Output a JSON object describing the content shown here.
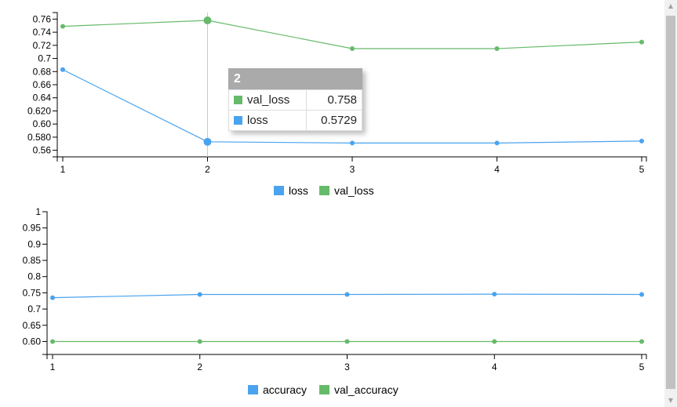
{
  "colors": {
    "loss": "#4aa3ee",
    "val_loss": "#66bb6a",
    "tooltip_header": "#aaaaaa",
    "focus_line": "#c8c8c8"
  },
  "chart_data": [
    {
      "type": "line",
      "x": [
        1,
        2,
        3,
        4,
        5
      ],
      "series": [
        {
          "name": "loss",
          "values": [
            0.683,
            0.5729,
            0.571,
            0.571,
            0.574
          ]
        },
        {
          "name": "val_loss",
          "values": [
            0.749,
            0.758,
            0.715,
            0.715,
            0.725
          ]
        }
      ],
      "ylim": [
        0.55,
        0.77
      ],
      "xlim": [
        1,
        5
      ],
      "y_ticks": [
        {
          "v": 0.56,
          "label": "0.56"
        },
        {
          "v": 0.58,
          "label": "0.580"
        },
        {
          "v": 0.6,
          "label": "0.60"
        },
        {
          "v": 0.62,
          "label": "0.620"
        },
        {
          "v": 0.64,
          "label": "0.64"
        },
        {
          "v": 0.66,
          "label": "0.66"
        },
        {
          "v": 0.68,
          "label": "0.68"
        },
        {
          "v": 0.7,
          "label": "0.7"
        },
        {
          "v": 0.72,
          "label": "0.72"
        },
        {
          "v": 0.74,
          "label": "0.74"
        },
        {
          "v": 0.76,
          "label": "0.76"
        }
      ],
      "x_ticks": [
        "1",
        "2",
        "3",
        "4",
        "5"
      ],
      "legend": [
        "loss",
        "val_loss"
      ],
      "legend_position": "bottom-center",
      "focus_x": 2,
      "tooltip": {
        "title": "2",
        "rows": [
          {
            "name": "val_loss",
            "value": "0.758",
            "series": "val_loss"
          },
          {
            "name": "loss",
            "value": "0.5729",
            "series": "loss"
          }
        ]
      }
    },
    {
      "type": "line",
      "x": [
        1,
        2,
        3,
        4,
        5
      ],
      "series": [
        {
          "name": "accuracy",
          "values": [
            0.735,
            0.745,
            0.745,
            0.746,
            0.745
          ]
        },
        {
          "name": "val_accuracy",
          "values": [
            0.6,
            0.6,
            0.6,
            0.6,
            0.6
          ]
        }
      ],
      "ylim": [
        0.56,
        1.0
      ],
      "xlim": [
        1,
        5
      ],
      "y_ticks": [
        {
          "v": 0.6,
          "label": "0.60"
        },
        {
          "v": 0.65,
          "label": "0.65"
        },
        {
          "v": 0.7,
          "label": "0.7"
        },
        {
          "v": 0.75,
          "label": "0.75"
        },
        {
          "v": 0.8,
          "label": "0.8"
        },
        {
          "v": 0.85,
          "label": "0.85"
        },
        {
          "v": 0.9,
          "label": "0.9"
        },
        {
          "v": 0.95,
          "label": "0.95"
        },
        {
          "v": 1.0,
          "label": "1"
        }
      ],
      "x_ticks": [
        "1",
        "2",
        "3",
        "4",
        "5"
      ],
      "legend": [
        "accuracy",
        "val_accuracy"
      ],
      "legend_position": "bottom-center"
    }
  ]
}
